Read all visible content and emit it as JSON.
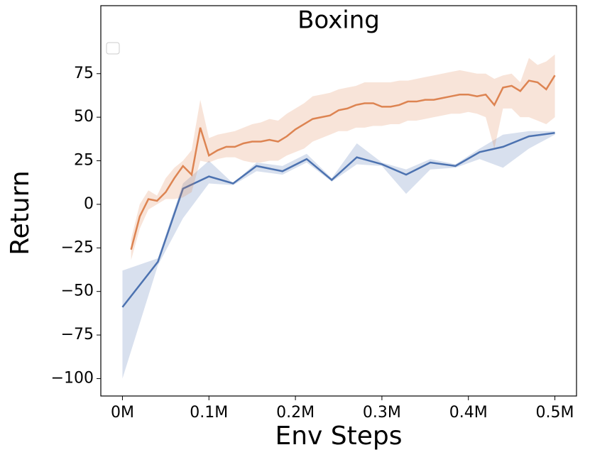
{
  "chart_data": {
    "type": "line",
    "title": "Boxing",
    "x_label": "Env Steps",
    "y_label": "Return",
    "xlim": [
      -25000,
      525000
    ],
    "ylim": [
      -110,
      114
    ],
    "xticks": [
      {
        "value": 0,
        "label": "0M"
      },
      {
        "value": 100000,
        "label": "0.1M"
      },
      {
        "value": 200000,
        "label": "0.2M"
      },
      {
        "value": 300000,
        "label": "0.3M"
      },
      {
        "value": 400000,
        "label": "0.4M"
      },
      {
        "value": 500000,
        "label": "0.5M"
      }
    ],
    "yticks": [
      -100,
      -75,
      -50,
      -25,
      0,
      25,
      50,
      75
    ],
    "grid": false,
    "series": [
      {
        "color": "#4c72b0",
        "x": [
          0,
          41000,
          70000,
          100000,
          128000,
          155000,
          185000,
          213000,
          242000,
          271000,
          300000,
          328000,
          356000,
          385000,
          413000,
          440000,
          470000,
          500000
        ],
        "values": [
          -59,
          -33,
          9,
          16,
          12,
          22,
          19,
          26,
          14,
          27,
          23,
          17,
          24,
          22,
          30,
          33,
          39,
          41
        ],
        "lower": [
          -100,
          -35,
          -8,
          12,
          11,
          19,
          17,
          24,
          13,
          23,
          22,
          6,
          20,
          21,
          26,
          21,
          32,
          40
        ],
        "upper": [
          -38,
          -31,
          12,
          25,
          12,
          24,
          22,
          29,
          15,
          35,
          24,
          20,
          26,
          23,
          32,
          40,
          42,
          42
        ]
      },
      {
        "color": "#dd8452",
        "x": [
          10000,
          20000,
          30000,
          40000,
          50000,
          60000,
          70000,
          80000,
          90000,
          100000,
          110000,
          120000,
          130000,
          140000,
          150000,
          160000,
          170000,
          180000,
          190000,
          200000,
          210000,
          220000,
          230000,
          240000,
          250000,
          260000,
          270000,
          280000,
          290000,
          300000,
          310000,
          320000,
          330000,
          340000,
          350000,
          360000,
          370000,
          380000,
          390000,
          400000,
          410000,
          420000,
          430000,
          440000,
          450000,
          460000,
          470000,
          480000,
          490000,
          500000
        ],
        "values": [
          -26,
          -7,
          3,
          2,
          7,
          15,
          22,
          17,
          44,
          28,
          31,
          33,
          33,
          35,
          36,
          36,
          37,
          36,
          39,
          43,
          46,
          49,
          50,
          51,
          54,
          55,
          57,
          58,
          58,
          56,
          56,
          57,
          59,
          59,
          60,
          60,
          61,
          62,
          63,
          63,
          62,
          63,
          57,
          67,
          68,
          65,
          71,
          70,
          66,
          74
        ],
        "lower": [
          -32,
          -14,
          -3,
          0,
          3,
          3,
          4,
          7,
          25,
          24,
          26,
          27,
          27,
          25,
          24,
          24,
          25,
          25,
          28,
          30,
          32,
          36,
          38,
          40,
          42,
          42,
          44,
          44,
          45,
          45,
          46,
          46,
          48,
          48,
          49,
          50,
          51,
          52,
          52,
          53,
          52,
          50,
          32,
          55,
          55,
          50,
          50,
          48,
          46,
          50
        ],
        "upper": [
          -20,
          0,
          8,
          5,
          15,
          21,
          25,
          31,
          60,
          38,
          40,
          41,
          42,
          44,
          46,
          47,
          49,
          48,
          52,
          55,
          58,
          62,
          63,
          64,
          66,
          67,
          68,
          70,
          70,
          70,
          70,
          71,
          71,
          72,
          73,
          74,
          75,
          76,
          77,
          76,
          75,
          75,
          72,
          74,
          75,
          70,
          84,
          80,
          82,
          86
        ]
      }
    ]
  }
}
